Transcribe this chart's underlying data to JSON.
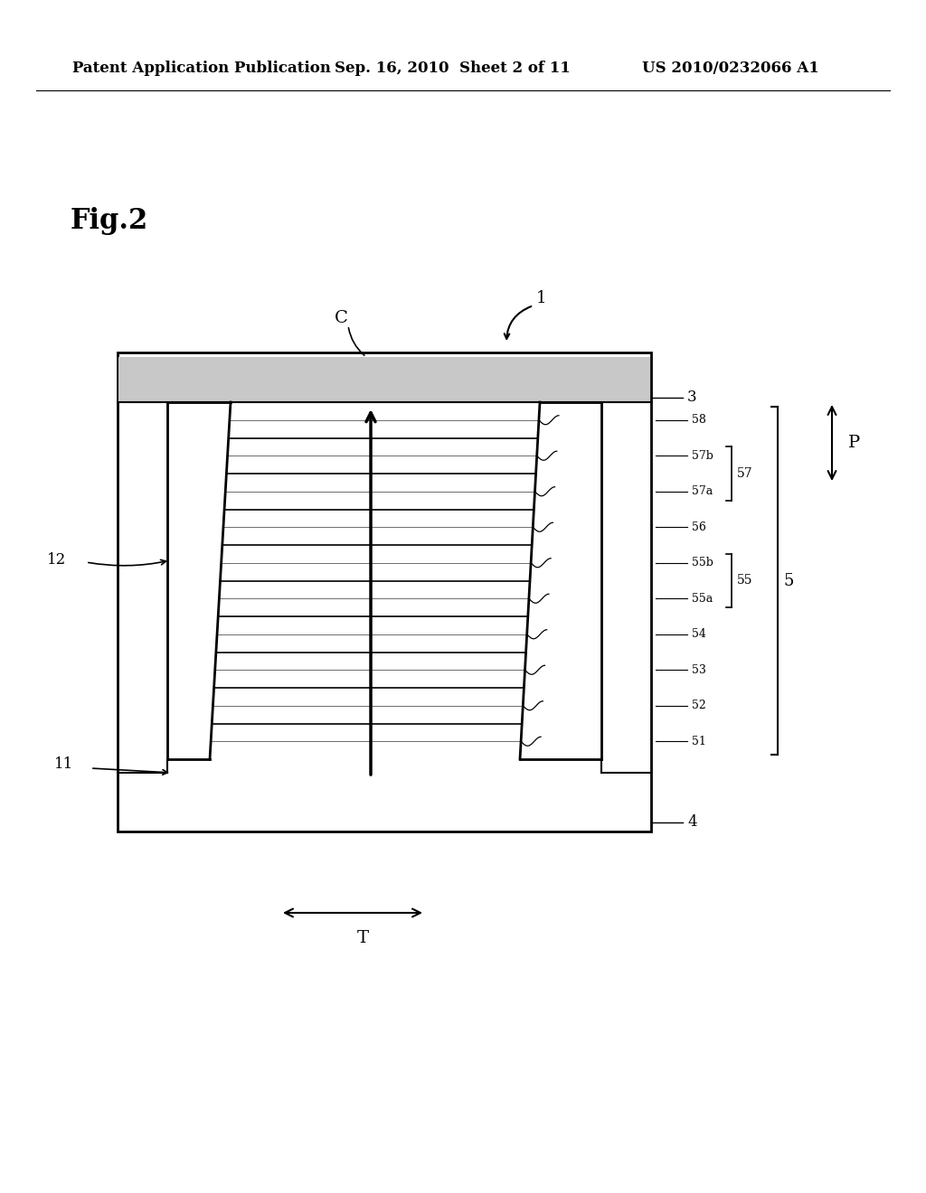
{
  "bg_color": "#ffffff",
  "header_text1": "Patent Application Publication",
  "header_text2": "Sep. 16, 2010  Sheet 2 of 11",
  "header_text3": "US 2010/0232066 A1",
  "fig_label": "Fig.2",
  "layer_labels": [
    "58",
    "57b",
    "57a",
    "56",
    "55b",
    "55a",
    "54",
    "53",
    "52",
    "51"
  ],
  "label1": "1",
  "label3": "3",
  "label4": "4",
  "label11": "11",
  "label12": "12",
  "labelP": "P",
  "labelT": "T",
  "labelC": "C"
}
